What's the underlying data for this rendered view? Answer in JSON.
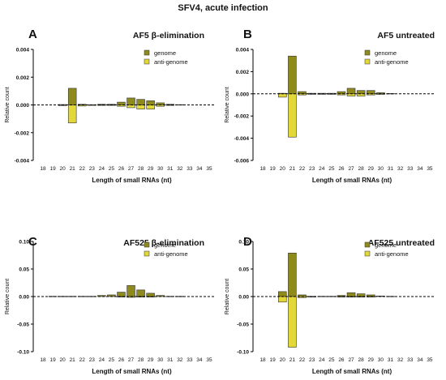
{
  "figure_title": "SFV4, acute infection",
  "colors": {
    "genome": "#8f8a1c",
    "anti_genome": "#e3d83a",
    "axis": "#000000"
  },
  "chart_data": [
    {
      "type": "bar",
      "panel_letter": "A",
      "title": "AF5 β-elimination",
      "xlabel": "Length of small RNAs (nt)",
      "ylabel": "Relative count",
      "categories": [
        "18",
        "19",
        "20",
        "21",
        "22",
        "23",
        "24",
        "25",
        "26",
        "27",
        "28",
        "29",
        "30",
        "31",
        "32",
        "33",
        "34",
        "35"
      ],
      "ylim": [
        -0.004,
        0.004
      ],
      "yticks": [
        "0.004",
        "0.002",
        "0.000",
        "-0.002",
        "-0.004"
      ],
      "legend_position": "top-right",
      "series": [
        {
          "name": "genome",
          "values": [
            0,
            0,
            3e-05,
            0.0012,
            5e-05,
            2e-05,
            5e-05,
            5e-05,
            0.0002,
            0.0005,
            0.0004,
            0.0003,
            0.00015,
            5e-05,
            2e-05,
            0,
            0,
            0
          ]
        },
        {
          "name": "anti-genome",
          "values": [
            0,
            0,
            -5e-05,
            -0.0013,
            -8e-05,
            -2e-05,
            -2e-05,
            -3e-05,
            -0.0001,
            -0.0002,
            -0.0003,
            -0.0003,
            -0.0001,
            -3e-05,
            0,
            0,
            0,
            0
          ]
        }
      ]
    },
    {
      "type": "bar",
      "panel_letter": "B",
      "title": "AF5 untreated",
      "xlabel": "Length of small RNAs (nt)",
      "ylabel": "Relative count",
      "categories": [
        "18",
        "19",
        "20",
        "21",
        "22",
        "23",
        "24",
        "25",
        "26",
        "27",
        "28",
        "29",
        "30",
        "31",
        "32",
        "33",
        "34",
        "35"
      ],
      "ylim": [
        -0.006,
        0.004
      ],
      "yticks": [
        "0.004",
        "0.002",
        "0.000",
        "-0.002",
        "-0.004",
        "-0.006"
      ],
      "legend_position": "top-right",
      "series": [
        {
          "name": "genome",
          "values": [
            0,
            0,
            5e-05,
            0.0034,
            0.0002,
            5e-05,
            5e-05,
            5e-05,
            0.0002,
            0.0005,
            0.0003,
            0.0003,
            0.0001,
            3e-05,
            0,
            0,
            0,
            0
          ]
        },
        {
          "name": "anti-genome",
          "values": [
            0,
            0,
            -0.0003,
            -0.0039,
            -0.0001,
            -3e-05,
            -2e-05,
            -2e-05,
            -0.0001,
            -0.0002,
            -0.0002,
            -0.0001,
            -5e-05,
            0,
            0,
            0,
            0,
            0
          ]
        }
      ]
    },
    {
      "type": "bar",
      "panel_letter": "C",
      "title": "AF525 β-elimination",
      "xlabel": "Length of small RNAs (nt)",
      "ylabel": "Relative count",
      "categories": [
        "18",
        "19",
        "20",
        "21",
        "22",
        "23",
        "24",
        "25",
        "26",
        "27",
        "28",
        "29",
        "30",
        "31",
        "32",
        "33",
        "34",
        "35"
      ],
      "ylim": [
        -0.1,
        0.1
      ],
      "yticks": [
        "0.10",
        "0.05",
        "0.00",
        "-0.05",
        "-0.10"
      ],
      "legend_position": "top-right",
      "series": [
        {
          "name": "genome",
          "values": [
            0,
            0.0005,
            0.0005,
            0.0005,
            0.0005,
            0.0005,
            0.002,
            0.003,
            0.008,
            0.02,
            0.012,
            0.006,
            0.002,
            0.0005,
            0.0005,
            0,
            0,
            0
          ]
        },
        {
          "name": "anti-genome",
          "values": [
            0,
            0,
            0,
            0,
            0,
            0,
            0,
            0,
            -0.0005,
            -0.0015,
            -0.001,
            -0.0005,
            0,
            0,
            0,
            0,
            0,
            0
          ]
        }
      ]
    },
    {
      "type": "bar",
      "panel_letter": "D",
      "title": "AF525 untreated",
      "xlabel": "Length of small RNAs (nt)",
      "ylabel": "Relative count",
      "categories": [
        "18",
        "19",
        "20",
        "21",
        "22",
        "23",
        "24",
        "25",
        "26",
        "27",
        "28",
        "29",
        "30",
        "31",
        "32",
        "33",
        "34",
        "35"
      ],
      "ylim": [
        -0.1,
        0.1
      ],
      "yticks": [
        "0.10",
        "0.05",
        "0.00",
        "-0.05",
        "-0.10"
      ],
      "legend_position": "top-right",
      "series": [
        {
          "name": "genome",
          "values": [
            0,
            0,
            0.009,
            0.079,
            0.003,
            0.0005,
            0.0005,
            0.0005,
            0.002,
            0.007,
            0.005,
            0.003,
            0.001,
            0.0005,
            0,
            0,
            0,
            0
          ]
        },
        {
          "name": "anti-genome",
          "values": [
            0,
            0,
            -0.01,
            -0.092,
            -0.002,
            -0.0005,
            0,
            0,
            -0.0005,
            -0.001,
            -0.001,
            -0.0005,
            0,
            0,
            0,
            0,
            0,
            0
          ]
        }
      ]
    }
  ]
}
